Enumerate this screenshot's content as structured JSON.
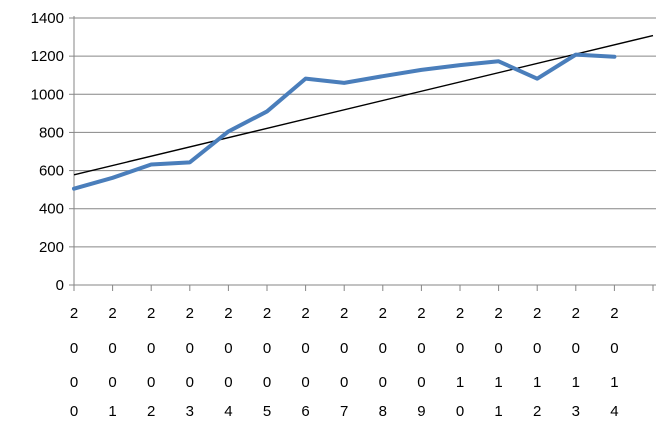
{
  "chart_data": {
    "type": "line",
    "categories": [
      "2000",
      "2001",
      "2002",
      "2003",
      "2004",
      "2005",
      "2006",
      "2007",
      "2008",
      "2009",
      "2010",
      "2011",
      "2012",
      "2013",
      "2014"
    ],
    "series": [
      {
        "values": [
          505,
          562,
          632,
          643,
          805,
          910,
          1082,
          1060,
          1095,
          1128,
          1153,
          1173,
          1082,
          1208,
          1197
        ],
        "color": "#4a7ebb"
      }
    ],
    "trendline": {
      "type": "linear",
      "start": 578,
      "end": 1308,
      "color": "#000000"
    },
    "y_ticks": [
      0,
      200,
      400,
      600,
      800,
      1000,
      1200,
      1400
    ],
    "ylim": [
      0,
      1400
    ],
    "grid": true,
    "legend": "none",
    "gridline_color": "#868686"
  }
}
